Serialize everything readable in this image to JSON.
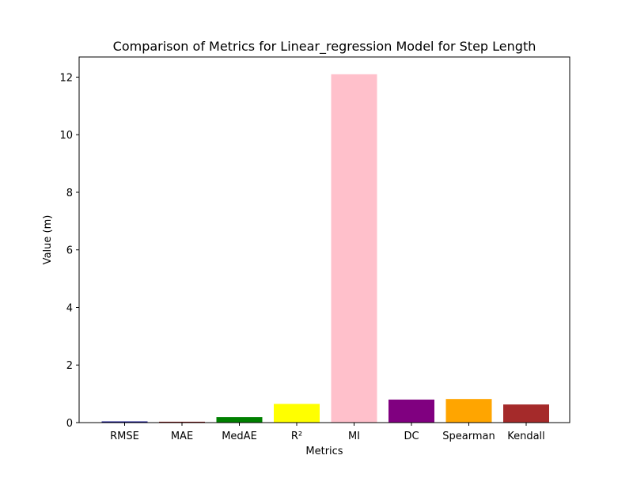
{
  "chart_data": {
    "type": "bar",
    "title": "Comparison of Metrics for Linear_regression Model for Step Length",
    "xlabel": "Metrics",
    "ylabel": "Value (m)",
    "categories": [
      "RMSE",
      "MAE",
      "MedAE",
      "R²",
      "MI",
      "DC",
      "Spearman",
      "Kendall"
    ],
    "values": [
      0.04,
      0.03,
      0.19,
      0.65,
      12.1,
      0.8,
      0.82,
      0.63
    ],
    "colors": [
      "#000080",
      "#800000",
      "#008000",
      "#ffff00",
      "#ffc0cb",
      "#800080",
      "#ffa500",
      "#a52a2a"
    ],
    "ylim": [
      0,
      12.7
    ],
    "yticks": [
      0,
      2,
      4,
      6,
      8,
      10,
      12
    ],
    "grid": false,
    "legend": "none"
  }
}
